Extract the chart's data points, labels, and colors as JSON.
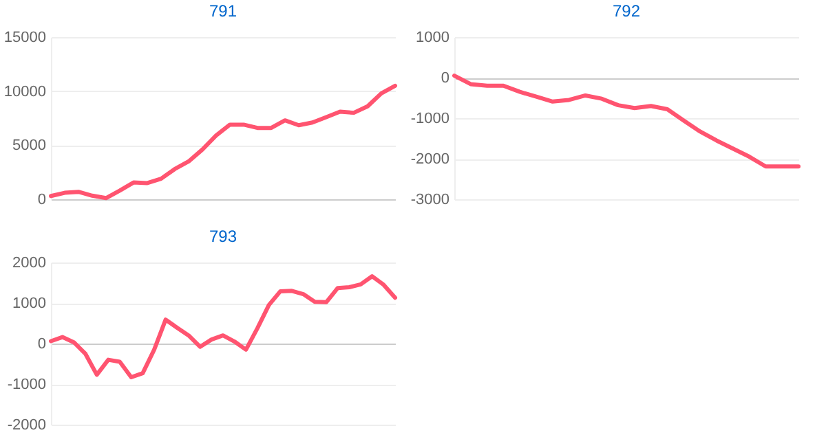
{
  "chart_data": [
    {
      "type": "line",
      "title": "791",
      "categories": [
        null,
        null,
        null,
        null,
        null,
        null,
        null,
        null,
        null,
        null,
        null,
        null,
        null,
        null,
        null,
        null,
        null,
        null,
        null,
        null,
        null,
        null,
        null,
        null,
        null,
        null
      ],
      "series": [
        {
          "color": "#ff5470",
          "values": [
            300,
            600,
            690,
            330,
            110,
            800,
            1550,
            1500,
            1900,
            2800,
            3500,
            4600,
            5900,
            6900,
            6900,
            6600,
            6600,
            7300,
            6850,
            7100,
            7600,
            8100,
            8000,
            8600,
            9800,
            10500
          ]
        }
      ],
      "ylim": [
        0,
        15000
      ],
      "yticks": [
        0,
        5000,
        10000,
        15000
      ],
      "grid": "y",
      "tick_labels": "y",
      "marker": "none",
      "line_style": "solid"
    },
    {
      "type": "line",
      "title": "792",
      "categories": [
        null,
        null,
        null,
        null,
        null,
        null,
        null,
        null,
        null,
        null,
        null,
        null,
        null,
        null,
        null,
        null,
        null,
        null,
        null,
        null,
        null,
        null
      ],
      "series": [
        {
          "color": "#ff5470",
          "values": [
            50,
            -160,
            -200,
            -200,
            -350,
            -470,
            -590,
            -550,
            -440,
            -520,
            -680,
            -750,
            -700,
            -780,
            -1060,
            -1330,
            -1550,
            -1750,
            -1950,
            -2190,
            -2190,
            -2190
          ]
        }
      ],
      "ylim": [
        -3000,
        1000
      ],
      "yticks": [
        -3000,
        -2000,
        -1000,
        0,
        1000
      ],
      "grid": "y",
      "tick_labels": "y",
      "marker": "none",
      "line_style": "solid"
    },
    {
      "type": "line",
      "title": "793",
      "categories": [
        null,
        null,
        null,
        null,
        null,
        null,
        null,
        null,
        null,
        null,
        null,
        null,
        null,
        null,
        null,
        null,
        null,
        null,
        null,
        null,
        null,
        null,
        null,
        null,
        null,
        null,
        null,
        null,
        null,
        null,
        null
      ],
      "series": [
        {
          "color": "#ff5470",
          "values": [
            60,
            160,
            30,
            -250,
            -770,
            -400,
            -450,
            -830,
            -730,
            -150,
            590,
            390,
            200,
            -80,
            100,
            200,
            50,
            -150,
            380,
            950,
            1290,
            1300,
            1220,
            1030,
            1020,
            1370,
            1390,
            1460,
            1660,
            1450,
            1130
          ]
        }
      ],
      "ylim": [
        -2000,
        2000
      ],
      "yticks": [
        -2000,
        -1000,
        0,
        1000,
        2000
      ],
      "grid": "y",
      "tick_labels": "y",
      "marker": "none",
      "line_style": "solid"
    }
  ]
}
